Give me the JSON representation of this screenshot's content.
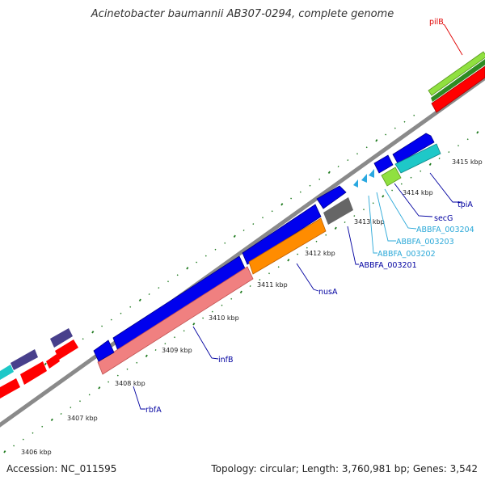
{
  "title": "Acinetobacter baumannii AB307-0294, complete genome",
  "footer": {
    "accession": "Accession: NC_011595",
    "topology": "Topology: circular; Length: 3,760,981 bp; Genes: 3,542"
  },
  "tick_labels": [
    "3406 kbp",
    "3407 kbp",
    "3408 kbp",
    "3409 kbp",
    "3410 kbp",
    "3411 kbp",
    "3412 kbp",
    "3413 kbp",
    "3414 kbp",
    "3415 kbp"
  ],
  "gene_labels": [
    {
      "id": "pilB",
      "text": "pilB",
      "color": "#e00000"
    },
    {
      "id": "tpiA",
      "text": "tpiA",
      "color": "#0000a0"
    },
    {
      "id": "secG",
      "text": "secG",
      "color": "#0000a0"
    },
    {
      "id": "abbfa-003204",
      "text": "ABBFA_003204",
      "color": "#2aa8d8"
    },
    {
      "id": "abbfa-003203",
      "text": "ABBFA_003203",
      "color": "#2aa8d8"
    },
    {
      "id": "abbfa-003202",
      "text": "ABBFA_003202",
      "color": "#2aa8d8"
    },
    {
      "id": "abbfa-003201",
      "text": "ABBFA_003201",
      "color": "#0000a0"
    },
    {
      "id": "nusA",
      "text": "nusA",
      "color": "#0000a0"
    },
    {
      "id": "infB",
      "text": "infB",
      "color": "#0000a0"
    },
    {
      "id": "rbfA",
      "text": "rbfA",
      "color": "#0000a0"
    }
  ],
  "colors": {
    "backbone": "#8a8a8a",
    "tick": "#1e7a1e",
    "cds_blue": "#0000ee",
    "cds_red": "#ff0000",
    "orange": "#ff8c00",
    "pink": "#f08080",
    "cyan": "#1ec8c8",
    "lime": "#90e040",
    "gray_gene": "#666666",
    "purple": "#48408c"
  }
}
